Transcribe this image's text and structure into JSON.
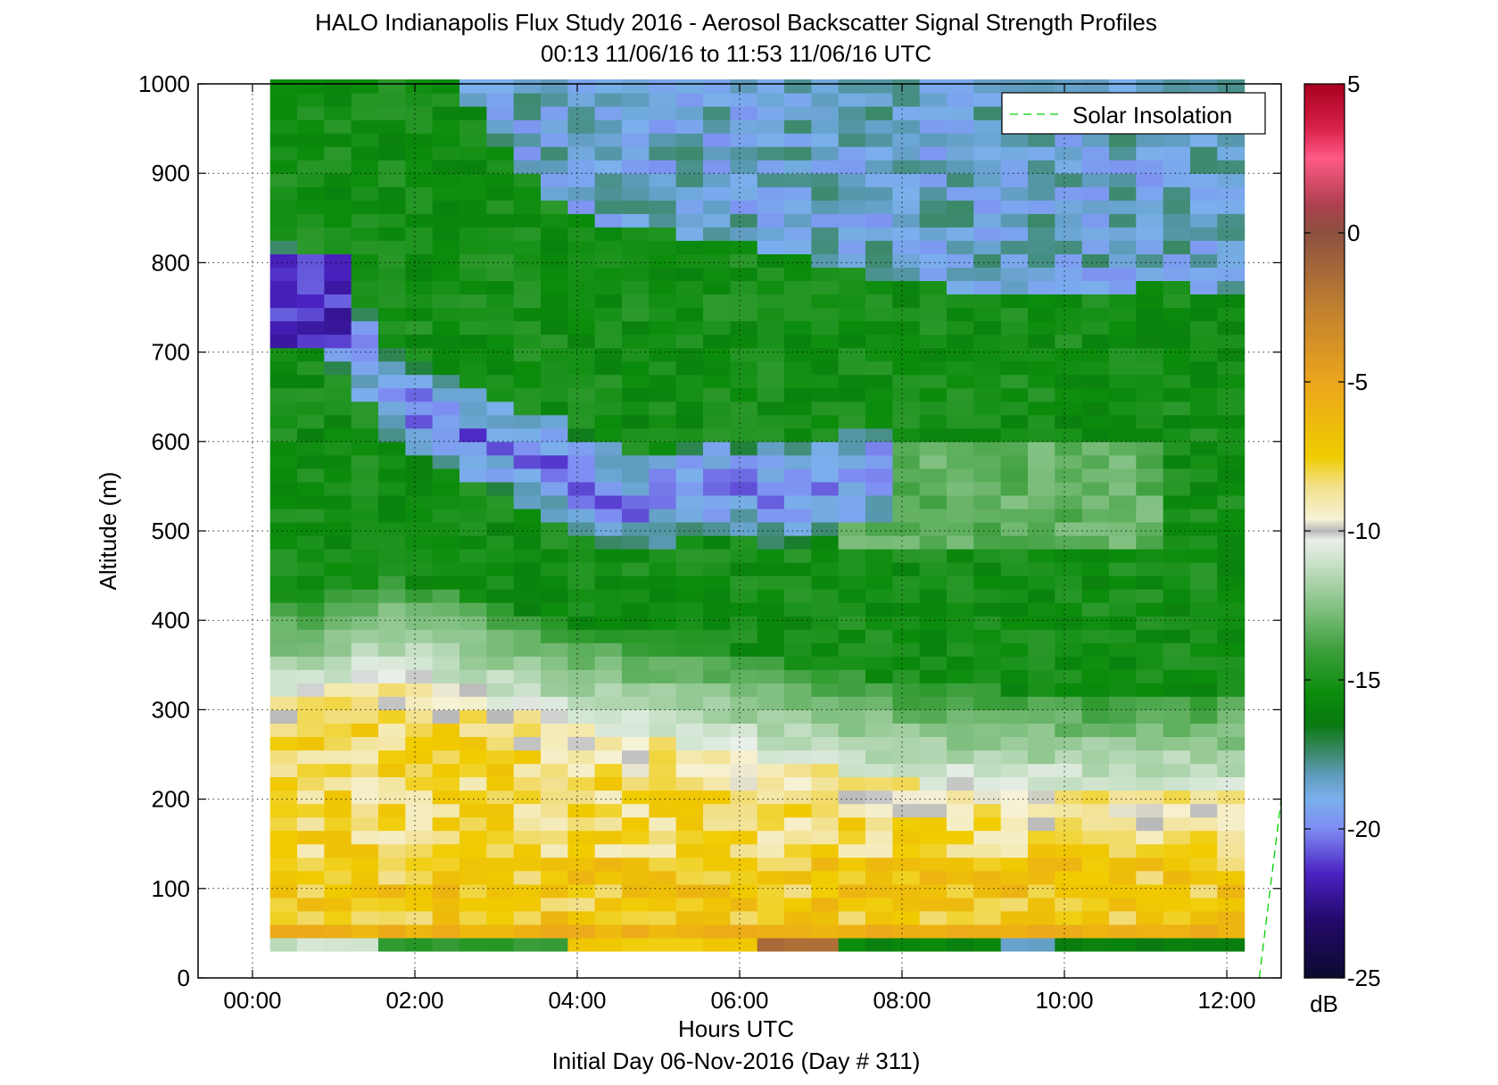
{
  "chart_data": {
    "type": "heatmap",
    "title": "HALO Indianapolis Flux Study 2016 - Aerosol Backscatter Signal Strength Profiles",
    "subtitle": "00:13 11/06/16 to 11:53 11/06/16  UTC",
    "xlabel": "Hours UTC",
    "xlabel2": "Initial Day 06-Nov-2016 (Day # 311)",
    "ylabel": "Altitude (m)",
    "xlim": [
      -0.67,
      12.67
    ],
    "ylim": [
      0,
      1000
    ],
    "x_ticks": [
      0,
      2,
      4,
      6,
      8,
      10,
      12
    ],
    "x_tick_labels": [
      "00:00",
      "02:00",
      "04:00",
      "06:00",
      "08:00",
      "10:00",
      "12:00"
    ],
    "y_ticks": [
      0,
      100,
      200,
      300,
      400,
      500,
      600,
      700,
      800,
      900,
      1000
    ],
    "y_tick_labels": [
      "0",
      "100",
      "200",
      "300",
      "400",
      "500",
      "600",
      "700",
      "800",
      "900",
      "1000"
    ],
    "grid": true,
    "legend": {
      "position": "top-right",
      "entries": [
        {
          "label": "Solar Insolation",
          "style": "dashed",
          "color": "#00d200"
        }
      ]
    },
    "colorbar": {
      "unit_label": "dB",
      "range": [
        -25,
        5
      ],
      "ticks": [
        5,
        0,
        -5,
        -10,
        -15,
        -20,
        -25
      ],
      "tick_labels": [
        "5",
        "0",
        "-5",
        "-10",
        "-15",
        "-20",
        "-25"
      ],
      "stops": [
        [
          -25,
          "#0c0a2e"
        ],
        [
          -23,
          "#240a6e"
        ],
        [
          -21.5,
          "#4a22c2"
        ],
        [
          -20,
          "#7e8cf2"
        ],
        [
          -19,
          "#7ab0ec"
        ],
        [
          -18.2,
          "#5f9cbe"
        ],
        [
          -17.5,
          "#3e8a70"
        ],
        [
          -16.5,
          "#0a7a10"
        ],
        [
          -15.5,
          "#0b8c0b"
        ],
        [
          -14,
          "#3c9f3c"
        ],
        [
          -12.5,
          "#86c286"
        ],
        [
          -11,
          "#cde3cd"
        ],
        [
          -10.3,
          "#e9efe9"
        ],
        [
          -10,
          "#b8b8b8"
        ],
        [
          -9.6,
          "#f6f2d6"
        ],
        [
          -8.5,
          "#f2e08a"
        ],
        [
          -7.5,
          "#f0cc00"
        ],
        [
          -5,
          "#eba51c"
        ],
        [
          -2.5,
          "#c08030"
        ],
        [
          0,
          "#8c5040"
        ],
        [
          1,
          "#b04050"
        ],
        [
          2.5,
          "#ff5a86"
        ],
        [
          3.5,
          "#d8224a"
        ],
        [
          5,
          "#a8001e"
        ]
      ]
    },
    "time_start_hours": 0.217,
    "time_end_hours": 11.883,
    "altitude_start_m": 30,
    "altitude_step_m": 15,
    "time_step_hours": 0.3333,
    "solar_insolation": {
      "x": [
        12.4,
        12.67
      ],
      "y": [
        0,
        200
      ]
    }
  }
}
